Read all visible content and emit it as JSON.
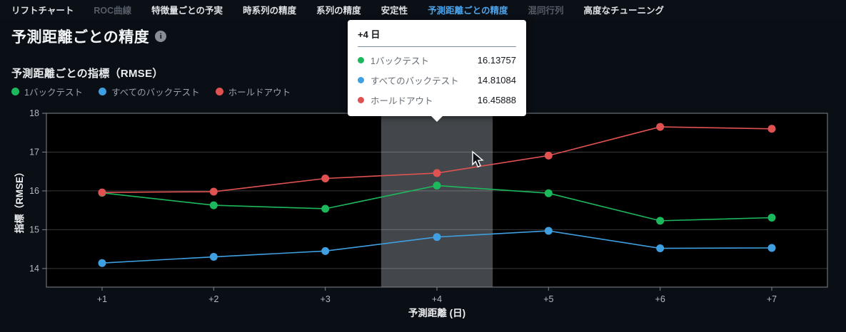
{
  "nav": {
    "items": [
      {
        "label": "リフトチャート",
        "state": "normal"
      },
      {
        "label": "ROC曲線",
        "state": "disabled"
      },
      {
        "label": "特徴量ごとの予実",
        "state": "normal"
      },
      {
        "label": "時系列の精度",
        "state": "normal"
      },
      {
        "label": "系列の精度",
        "state": "normal"
      },
      {
        "label": "安定性",
        "state": "normal"
      },
      {
        "label": "予測距離ごとの精度",
        "state": "active"
      },
      {
        "label": "混同行列",
        "state": "disabled"
      },
      {
        "label": "高度なチューニング",
        "state": "normal"
      }
    ]
  },
  "header": {
    "title": "予測距離ごとの精度"
  },
  "section": {
    "subtitle": "予測距離ごとの指標（RMSE）"
  },
  "colors": {
    "series_green": "#1cb85c",
    "series_blue": "#3f9fe0",
    "series_red": "#e05252",
    "accent_blue": "#4da3e8",
    "plot_bg": "#000000",
    "highlight_band": "#43474b",
    "axis_line": "#80868c",
    "gridline": "rgba(255,255,255,0.22)",
    "tick_text": "#b3b9bf",
    "tooltip_bg": "#ffffff"
  },
  "legend": [
    {
      "label": "1バックテスト",
      "color": "#1cb85c"
    },
    {
      "label": "すべてのバックテスト",
      "color": "#3f9fe0"
    },
    {
      "label": "ホールドアウト",
      "color": "#e05252"
    }
  ],
  "tooltip": {
    "title": "+4 日",
    "rows": [
      {
        "label": "1バックテスト",
        "value": "16.13757",
        "color": "#1cb85c"
      },
      {
        "label": "すべてのバックテスト",
        "value": "14.81084",
        "color": "#3f9fe0"
      },
      {
        "label": "ホールドアウト",
        "value": "16.45888",
        "color": "#e05252"
      }
    ]
  },
  "chart_data": {
    "type": "line",
    "title": "予測距離ごとの指標（RMSE）",
    "xlabel": "予測距離 (日)",
    "ylabel": "指標（RMSE）",
    "categories": [
      "+1",
      "+2",
      "+3",
      "+4",
      "+5",
      "+6",
      "+7"
    ],
    "series": [
      {
        "name": "1バックテスト",
        "color": "#1cb85c",
        "values": [
          15.95,
          15.63,
          15.54,
          16.13757,
          15.94,
          15.23,
          15.31
        ]
      },
      {
        "name": "すべてのバックテスト",
        "color": "#3f9fe0",
        "values": [
          14.14,
          14.3,
          14.45,
          14.81084,
          14.97,
          14.52,
          14.53
        ]
      },
      {
        "name": "ホールドアウト",
        "color": "#e05252",
        "values": [
          15.96,
          15.98,
          16.32,
          16.45888,
          16.91,
          17.65,
          17.6
        ]
      }
    ],
    "y_ticks": [
      14,
      15,
      16,
      17,
      18
    ],
    "ylim": [
      13.52,
      18
    ],
    "grid": true,
    "legend_position": "top",
    "highlighted_category": "+4"
  }
}
